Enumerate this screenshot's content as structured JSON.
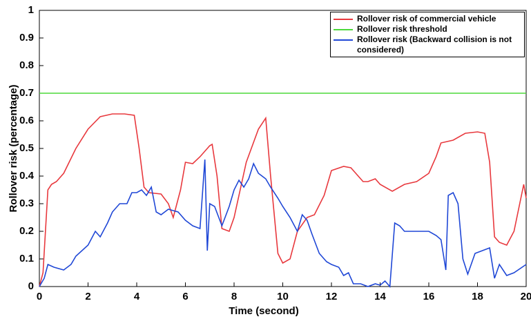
{
  "chart_data": {
    "type": "line",
    "xlabel": "Time (second)",
    "ylabel": "Rollover risk (percentage)",
    "xlim": [
      0,
      20
    ],
    "ylim": [
      0,
      1
    ],
    "xticks": [
      0,
      2,
      4,
      6,
      8,
      10,
      12,
      14,
      16,
      18,
      20
    ],
    "yticks": [
      0,
      0.1,
      0.2,
      0.3,
      0.4,
      0.5,
      0.6,
      0.7,
      0.8,
      0.9,
      1
    ],
    "grid": false,
    "legend": "upper right",
    "series": [
      {
        "name": "Rollover risk of commercial vehicle",
        "color": "#e8383d",
        "x": [
          0,
          0.15,
          0.35,
          0.5,
          0.7,
          1,
          1.5,
          2,
          2.5,
          3,
          3.5,
          3.9,
          4.1,
          4.3,
          4.5,
          5,
          5.3,
          5.5,
          5.8,
          6,
          6.3,
          6.6,
          7,
          7.1,
          7.3,
          7.5,
          7.8,
          8,
          8.5,
          9,
          9.3,
          9.5,
          9.8,
          10,
          10.3,
          10.6,
          11,
          11.3,
          11.7,
          12,
          12.5,
          12.8,
          13,
          13.3,
          13.5,
          13.8,
          14,
          14.5,
          15,
          15.5,
          16,
          16.3,
          16.5,
          17,
          17.5,
          18,
          18.3,
          18.5,
          18.7,
          18.9,
          19.2,
          19.5,
          19.9,
          20
        ],
        "values": [
          0,
          0.05,
          0.35,
          0.37,
          0.38,
          0.41,
          0.5,
          0.57,
          0.615,
          0.625,
          0.625,
          0.62,
          0.5,
          0.36,
          0.34,
          0.335,
          0.3,
          0.25,
          0.35,
          0.45,
          0.445,
          0.47,
          0.51,
          0.515,
          0.4,
          0.21,
          0.2,
          0.25,
          0.45,
          0.57,
          0.61,
          0.4,
          0.12,
          0.085,
          0.1,
          0.2,
          0.25,
          0.26,
          0.33,
          0.42,
          0.435,
          0.43,
          0.41,
          0.38,
          0.38,
          0.39,
          0.37,
          0.345,
          0.37,
          0.38,
          0.41,
          0.47,
          0.52,
          0.53,
          0.555,
          0.56,
          0.555,
          0.45,
          0.18,
          0.16,
          0.15,
          0.2,
          0.37,
          0.32
        ]
      },
      {
        "name": "Rollover risk threshold",
        "color": "#4cd93a",
        "x": [
          0,
          20
        ],
        "values": [
          0.7,
          0.7
        ]
      },
      {
        "name": "Rollover risk (Backward collision is not considered)",
        "color": "#1f47d6",
        "x": [
          0,
          0.2,
          0.35,
          0.6,
          1,
          1.3,
          1.5,
          2,
          2.3,
          2.5,
          2.8,
          3,
          3.3,
          3.6,
          3.8,
          4,
          4.2,
          4.4,
          4.6,
          4.8,
          5,
          5.3,
          5.7,
          6,
          6.3,
          6.6,
          6.8,
          6.9,
          7,
          7.2,
          7.5,
          7.8,
          8,
          8.2,
          8.4,
          8.6,
          8.8,
          9,
          9.3,
          9.5,
          9.8,
          10,
          10.3,
          10.6,
          10.8,
          11,
          11.2,
          11.5,
          11.8,
          12,
          12.3,
          12.5,
          12.7,
          12.9,
          13.2,
          13.5,
          13.8,
          14,
          14.2,
          14.4,
          14.6,
          14.8,
          15,
          15.5,
          16,
          16.3,
          16.5,
          16.7,
          16.8,
          17,
          17.2,
          17.4,
          17.6,
          17.9,
          18.2,
          18.5,
          18.7,
          18.9,
          19.2,
          19.5,
          20
        ],
        "values": [
          0,
          0.03,
          0.08,
          0.07,
          0.06,
          0.08,
          0.11,
          0.15,
          0.2,
          0.18,
          0.23,
          0.27,
          0.3,
          0.3,
          0.34,
          0.34,
          0.35,
          0.33,
          0.36,
          0.27,
          0.26,
          0.28,
          0.27,
          0.24,
          0.22,
          0.21,
          0.46,
          0.13,
          0.3,
          0.29,
          0.22,
          0.29,
          0.35,
          0.385,
          0.36,
          0.39,
          0.445,
          0.41,
          0.39,
          0.36,
          0.32,
          0.29,
          0.25,
          0.2,
          0.26,
          0.24,
          0.19,
          0.12,
          0.09,
          0.08,
          0.07,
          0.04,
          0.05,
          0.01,
          0.01,
          0,
          0.01,
          0.005,
          0.02,
          0,
          0.23,
          0.22,
          0.2,
          0.2,
          0.2,
          0.185,
          0.17,
          0.06,
          0.33,
          0.34,
          0.3,
          0.1,
          0.045,
          0.12,
          0.13,
          0.14,
          0.03,
          0.08,
          0.04,
          0.05,
          0.08
        ]
      }
    ]
  }
}
